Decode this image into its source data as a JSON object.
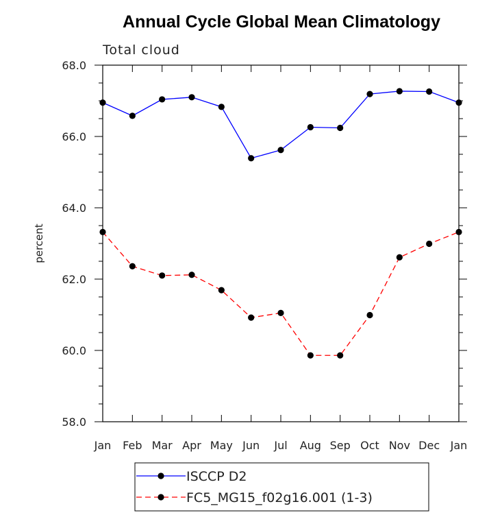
{
  "chart_data": {
    "type": "line",
    "title": "Annual Cycle Global Mean Climatology",
    "subtitle": "Total cloud",
    "xlabel": "",
    "ylabel": "percent",
    "categories": [
      "Jan",
      "Feb",
      "Mar",
      "Apr",
      "May",
      "Jun",
      "Jul",
      "Aug",
      "Sep",
      "Oct",
      "Nov",
      "Dec",
      "Jan"
    ],
    "ylim": [
      58.0,
      68.0
    ],
    "yticks": [
      "58.0",
      "60.0",
      "62.0",
      "64.0",
      "66.0",
      "68.0"
    ],
    "grid": false,
    "legend_position": "bottom",
    "series": [
      {
        "name": "ISCCP D2",
        "color": "#0000ff",
        "dash": "solid",
        "values": [
          66.95,
          66.58,
          67.04,
          67.1,
          66.83,
          65.39,
          65.62,
          66.26,
          66.24,
          67.19,
          67.27,
          67.26,
          66.95
        ]
      },
      {
        "name": "FC5_MG15_f02g16.001 (1-3)",
        "color": "#ff0000",
        "dash": "dashed",
        "values": [
          63.32,
          62.36,
          62.1,
          62.12,
          61.69,
          60.92,
          61.05,
          59.86,
          59.86,
          60.99,
          62.61,
          62.99,
          63.32
        ]
      }
    ]
  }
}
